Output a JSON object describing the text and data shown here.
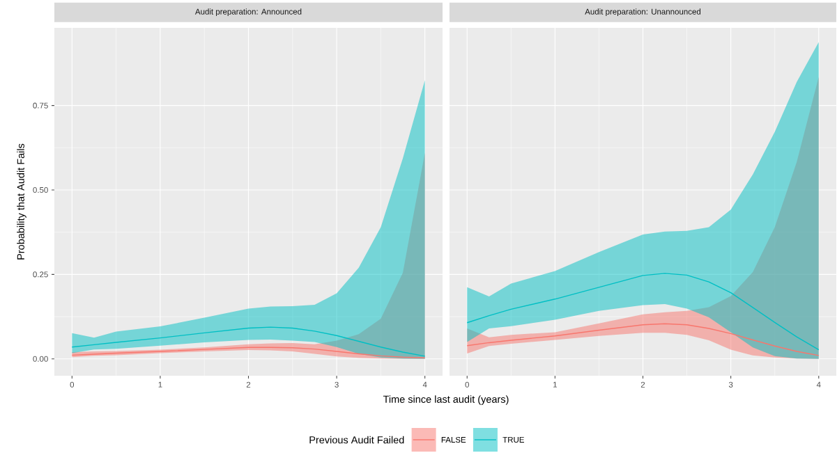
{
  "chart_data": [
    {
      "type": "line",
      "title": "Audit preparation: Announced",
      "xlabel": "Time since last audit (years)",
      "ylabel": "Probability that Audit Fails",
      "legend_title": "Previous Audit Failed",
      "legend": "bottom",
      "grid": true,
      "xlim": [
        -0.2,
        4.2
      ],
      "ylim": [
        -0.05,
        0.98
      ],
      "xticks": [
        0,
        1,
        2,
        3,
        4
      ],
      "yticks": [
        {
          "value": 0,
          "label": "0.00"
        },
        {
          "value": 0.25,
          "label": "0.25"
        },
        {
          "value": 0.5,
          "label": "0.50"
        },
        {
          "value": 0.75,
          "label": "0.75"
        }
      ],
      "x": [
        0,
        0.25,
        0.5,
        1,
        1.5,
        2,
        2.25,
        2.5,
        2.75,
        3,
        3.25,
        3.5,
        3.75,
        4
      ],
      "series": [
        {
          "name": "FALSE",
          "color": "#f8766d",
          "values": [
            0.011,
            0.014,
            0.017,
            0.022,
            0.028,
            0.034,
            0.034,
            0.033,
            0.029,
            0.022,
            0.015,
            0.009,
            0.005,
            0.003
          ],
          "upper": [
            0.02,
            0.022,
            0.023,
            0.027,
            0.034,
            0.043,
            0.046,
            0.047,
            0.043,
            0.054,
            0.073,
            0.119,
            0.255,
            0.61
          ],
          "lower": [
            0.005,
            0.009,
            0.011,
            0.017,
            0.022,
            0.026,
            0.025,
            0.022,
            0.015,
            0.007,
            0.003,
            0.001,
            0,
            0
          ]
        },
        {
          "name": "TRUE",
          "color": "#00bfc4",
          "values": [
            0.035,
            0.042,
            0.049,
            0.062,
            0.077,
            0.091,
            0.094,
            0.091,
            0.082,
            0.069,
            0.052,
            0.035,
            0.02,
            0.008
          ],
          "upper": [
            0.076,
            0.063,
            0.081,
            0.096,
            0.122,
            0.149,
            0.155,
            0.156,
            0.16,
            0.194,
            0.27,
            0.39,
            0.594,
            0.825
          ],
          "lower": [
            0.017,
            0.028,
            0.03,
            0.039,
            0.049,
            0.056,
            0.057,
            0.054,
            0.05,
            0.035,
            0.015,
            0.004,
            0.001,
            0
          ]
        }
      ]
    },
    {
      "type": "line",
      "title": "Audit preparation: Unannounced",
      "grid": true,
      "tick_labels": "x",
      "xlim": [
        -0.2,
        4.2
      ],
      "ylim": [
        -0.05,
        0.98
      ],
      "xticks": [
        0,
        1,
        2,
        3,
        4
      ],
      "yticks": [
        0,
        0.25,
        0.5,
        0.75
      ],
      "x": [
        0,
        0.25,
        0.5,
        1,
        1.5,
        2,
        2.25,
        2.5,
        2.75,
        3,
        3.25,
        3.5,
        3.75,
        4
      ],
      "series": [
        {
          "color": "#f8766d",
          "values": [
            0.039,
            0.048,
            0.055,
            0.068,
            0.085,
            0.101,
            0.104,
            0.101,
            0.09,
            0.075,
            0.056,
            0.038,
            0.022,
            0.01
          ],
          "upper": [
            0.09,
            0.064,
            0.071,
            0.079,
            0.105,
            0.132,
            0.138,
            0.142,
            0.153,
            0.186,
            0.257,
            0.39,
            0.583,
            0.835
          ],
          "lower": [
            0.016,
            0.038,
            0.045,
            0.056,
            0.068,
            0.077,
            0.077,
            0.071,
            0.055,
            0.027,
            0.01,
            0.004,
            0.001,
            0
          ]
        },
        {
          "color": "#00bfc4",
          "values": [
            0.107,
            0.128,
            0.147,
            0.177,
            0.212,
            0.247,
            0.253,
            0.248,
            0.228,
            0.196,
            0.152,
            0.108,
            0.065,
            0.027
          ],
          "upper": [
            0.212,
            0.185,
            0.223,
            0.26,
            0.316,
            0.368,
            0.377,
            0.379,
            0.39,
            0.442,
            0.546,
            0.672,
            0.82,
            0.938
          ],
          "lower": [
            0.05,
            0.09,
            0.097,
            0.116,
            0.142,
            0.159,
            0.162,
            0.149,
            0.123,
            0.079,
            0.034,
            0.008,
            0.001,
            0
          ]
        }
      ]
    }
  ]
}
